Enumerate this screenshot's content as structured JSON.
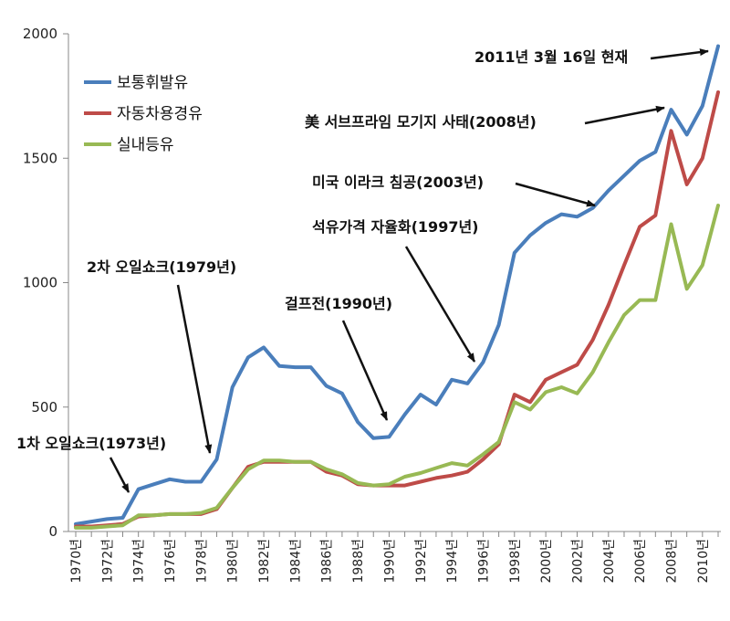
{
  "chart_data": {
    "type": "line",
    "ylim": [
      0,
      2000
    ],
    "yticks": [
      0,
      500,
      1000,
      1500,
      2000
    ],
    "grid": false,
    "legend_position": "top-left",
    "x": [
      1970,
      1971,
      1972,
      1973,
      1974,
      1975,
      1976,
      1977,
      1978,
      1979,
      1980,
      1981,
      1982,
      1983,
      1984,
      1985,
      1986,
      1987,
      1988,
      1989,
      1990,
      1991,
      1992,
      1993,
      1994,
      1995,
      1996,
      1997,
      1998,
      1999,
      2000,
      2001,
      2002,
      2003,
      2004,
      2005,
      2006,
      2007,
      2008,
      2009,
      2010,
      2011
    ],
    "xtick_labels": [
      "1970년",
      "1972년",
      "1974년",
      "1976년",
      "1978년",
      "1980년",
      "1982년",
      "1984년",
      "1986년",
      "1988년",
      "1990년",
      "1992년",
      "1994년",
      "1996년",
      "1998년",
      "2000년",
      "2002년",
      "2004년",
      "2006년",
      "2008년",
      "2010년"
    ],
    "series": [
      {
        "name": "보통휘발유",
        "color": "#4a7ebb",
        "values": [
          30,
          40,
          50,
          55,
          170,
          190,
          210,
          200,
          200,
          290,
          580,
          700,
          740,
          665,
          660,
          660,
          585,
          555,
          440,
          375,
          380,
          470,
          550,
          510,
          610,
          595,
          680,
          830,
          1120,
          1190,
          1240,
          1275,
          1265,
          1300,
          1370,
          1430,
          1490,
          1525,
          1695,
          1595,
          1710,
          1950
        ]
      },
      {
        "name": "자동차용경유",
        "color": "#be4b48",
        "values": [
          20,
          20,
          25,
          30,
          60,
          65,
          70,
          70,
          70,
          90,
          175,
          260,
          280,
          280,
          280,
          280,
          240,
          225,
          190,
          185,
          185,
          185,
          200,
          215,
          225,
          240,
          290,
          350,
          550,
          520,
          610,
          640,
          670,
          770,
          910,
          1070,
          1225,
          1270,
          1610,
          1395,
          1500,
          1765
        ]
      },
      {
        "name": "실내등유",
        "color": "#98b954",
        "values": [
          15,
          15,
          20,
          25,
          65,
          65,
          70,
          70,
          75,
          95,
          175,
          250,
          285,
          285,
          280,
          280,
          250,
          230,
          195,
          185,
          190,
          220,
          235,
          255,
          275,
          265,
          310,
          360,
          520,
          490,
          560,
          580,
          555,
          640,
          760,
          870,
          930,
          930,
          1235,
          975,
          1070,
          1310
        ]
      }
    ],
    "annotations": [
      {
        "text": "2011년 3월 16일 현재"
      },
      {
        "text": "美 서브프라임 모기지 사태(2008년)"
      },
      {
        "text": "미국 이라크 침공(2003년)"
      },
      {
        "text": "석유가격 자율화(1997년)"
      },
      {
        "text": "2차 오일쇼크(1979년)"
      },
      {
        "text": "걸프전(1990년)"
      },
      {
        "text": "1차 오일쇼크(1973년)"
      }
    ]
  }
}
